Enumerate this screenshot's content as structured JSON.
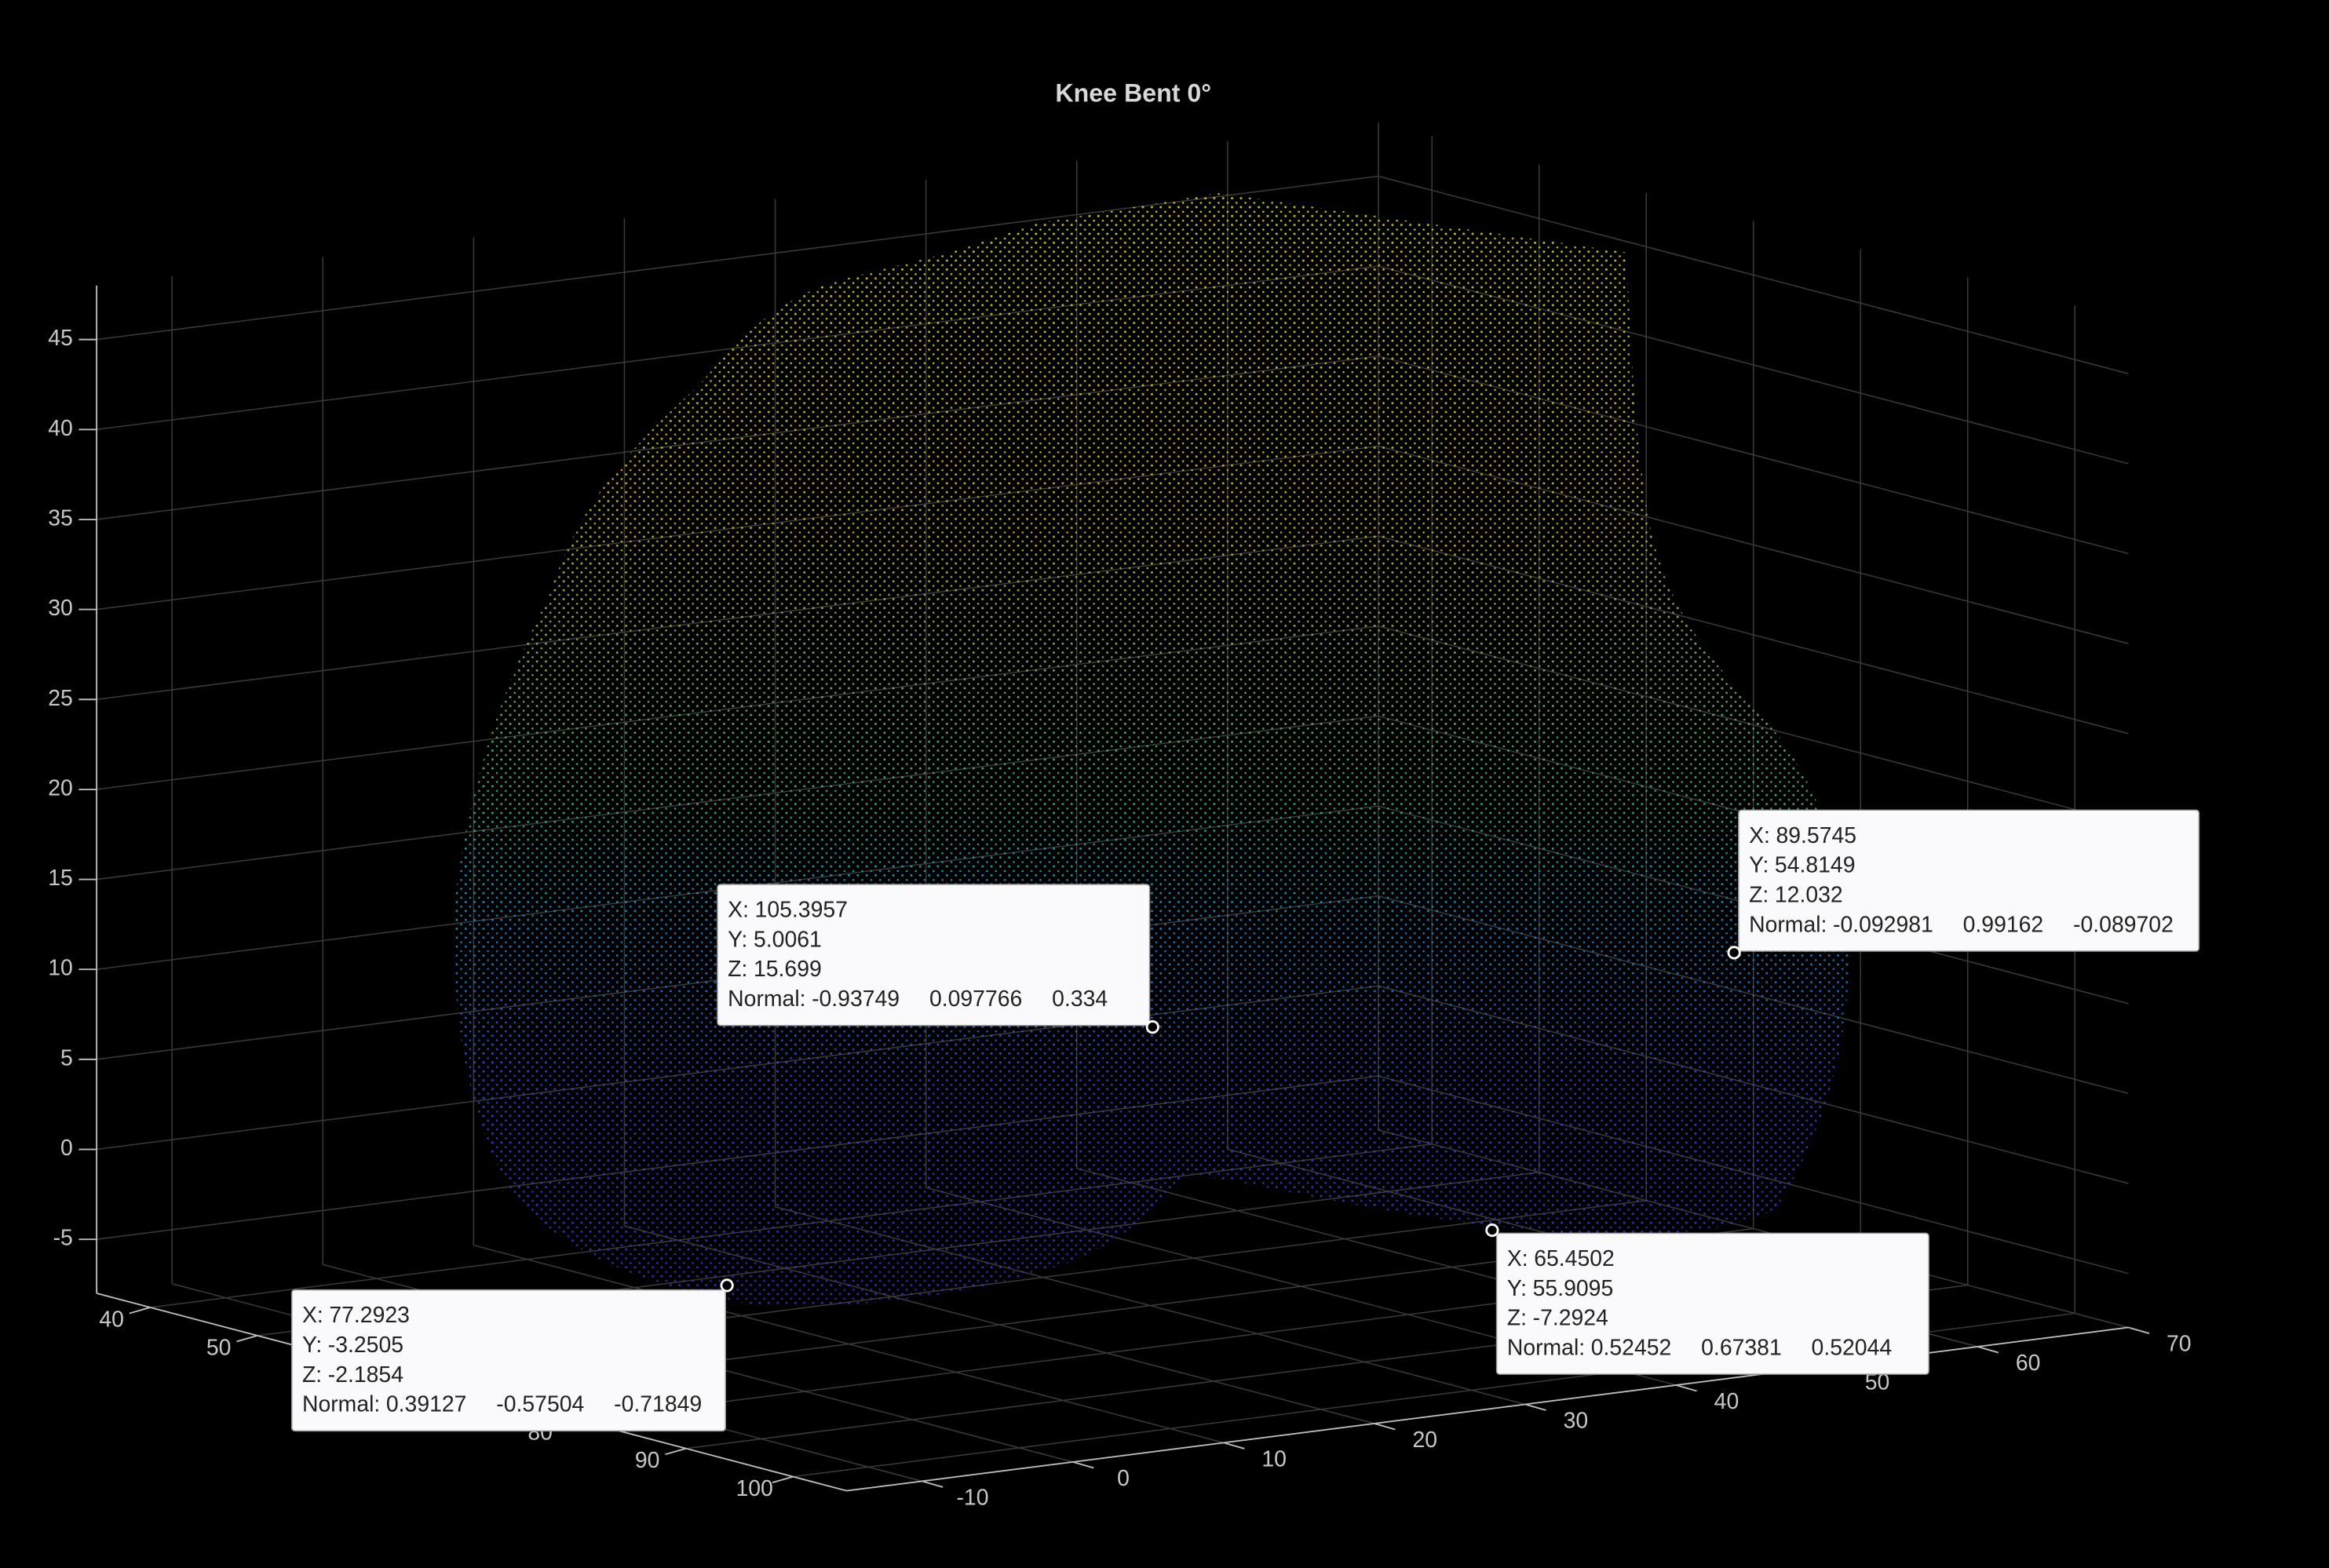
{
  "chart_data": {
    "type": "scatter3d",
    "title": "Knee Bent 0°",
    "xlim": [
      35,
      105
    ],
    "ylim": [
      -15,
      70
    ],
    "zlim": [
      -8,
      48
    ],
    "xticks": [
      40,
      50,
      60,
      70,
      80,
      90,
      100
    ],
    "yticks": [
      -10,
      0,
      10,
      20,
      30,
      40,
      50,
      60,
      70
    ],
    "zticks": [
      -5,
      0,
      5,
      10,
      15,
      20,
      25,
      30,
      35,
      40,
      45
    ],
    "grid": true,
    "tip_labels": {
      "x": "X:",
      "y": "Y:",
      "z": "Z:",
      "normal": "Normal:"
    },
    "data_tips": [
      {
        "x": 77.2923,
        "y": -3.2505,
        "z": -2.1854,
        "normal": [
          0.39127,
          -0.57504,
          -0.71849
        ]
      },
      {
        "x": 105.3957,
        "y": 5.0061,
        "z": 15.699,
        "normal": [
          -0.93749,
          0.097766,
          0.334
        ]
      },
      {
        "x": 89.5745,
        "y": 54.8149,
        "z": 12.032,
        "normal": [
          -0.092981,
          0.99162,
          -0.089702
        ]
      },
      {
        "x": 65.4502,
        "y": 55.9095,
        "z": -7.2924,
        "normal": [
          0.52452,
          0.67381,
          0.52044
        ]
      }
    ]
  }
}
